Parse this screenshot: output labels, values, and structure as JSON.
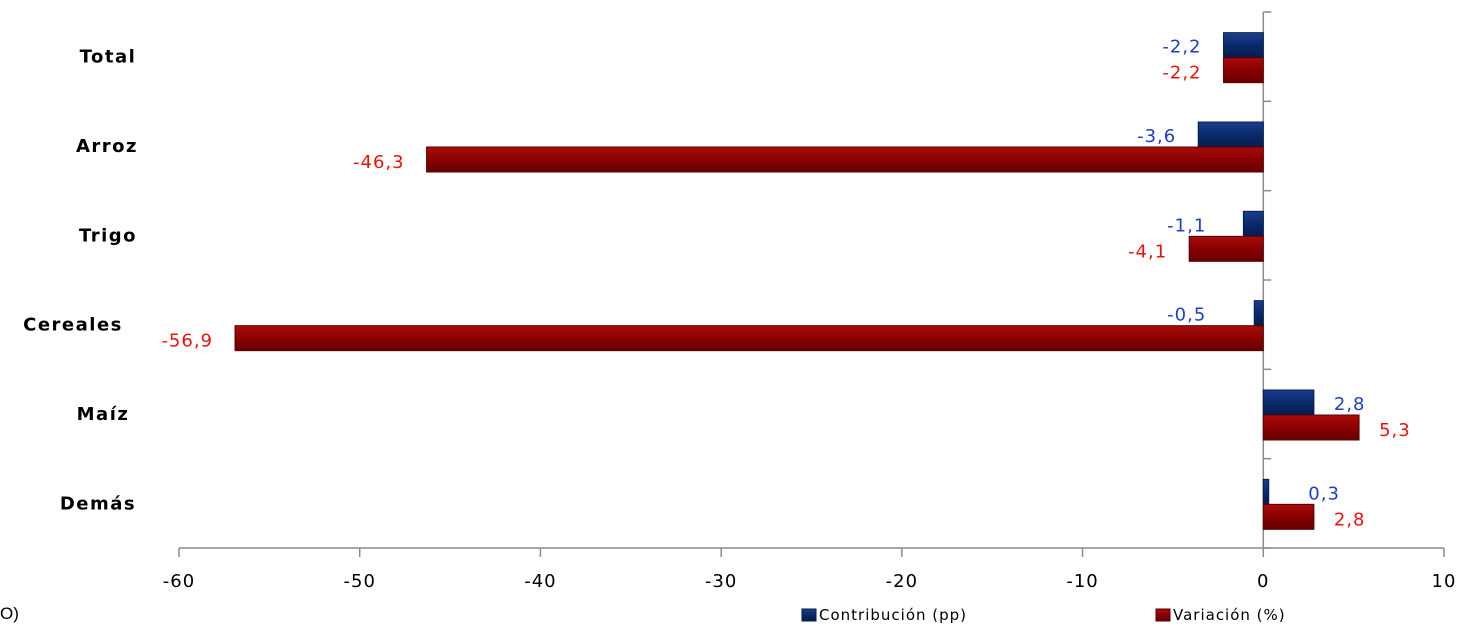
{
  "chart_data": {
    "type": "bar",
    "orientation": "horizontal",
    "categories": [
      "Total",
      "Arroz",
      "Trigo",
      "Cereales",
      "Maíz",
      "Demás"
    ],
    "series": [
      {
        "name": "Contribución (pp)",
        "color": "#0a2a6b",
        "label_color": "#1f3fbf",
        "values": [
          -2.2,
          -3.6,
          -1.1,
          -0.5,
          2.8,
          0.3
        ],
        "labels": [
          "-2,2",
          "-3,6",
          "-1,1",
          "-0,5",
          "2,8",
          "0,3"
        ]
      },
      {
        "name": "Variación (%)",
        "color": "#8b0000",
        "label_color": "#e8140c",
        "values": [
          -2.2,
          -46.3,
          -4.1,
          -56.9,
          5.3,
          2.8
        ],
        "labels": [
          "-2,2",
          "-46,3",
          "-4,1",
          "-56,9",
          "5,3",
          "2,8"
        ]
      }
    ],
    "xlim": [
      -60,
      10
    ],
    "xticks": [
      "-60",
      "-50",
      "-40",
      "-30",
      "-20",
      "-10",
      "0",
      "10"
    ],
    "xtick_values": [
      -60,
      -50,
      -40,
      -30,
      -20,
      -10,
      0,
      10
    ],
    "grid": false,
    "legend_position": "bottom-right"
  },
  "stray_text": "O)"
}
